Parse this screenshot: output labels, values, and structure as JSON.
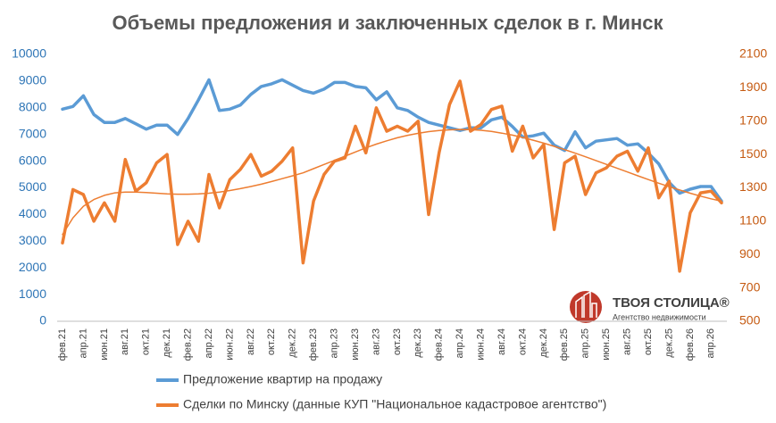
{
  "chart_data": {
    "type": "line",
    "title": "Объемы предложения и заключенных сделок в г. Минск",
    "categories": [
      "фев.21",
      null,
      "апр.21",
      null,
      "июн.21",
      null,
      "авг.21",
      null,
      "окт.21",
      null,
      "дек.21",
      null,
      "фев.22",
      null,
      "апр.22",
      null,
      "июн.22",
      null,
      "авг.22",
      null,
      "окт.22",
      null,
      "дек.22",
      null,
      "фев.23",
      null,
      "апр.23",
      null,
      "июн.23",
      null,
      "авг.23",
      null,
      "окт.23",
      null,
      "дек.23",
      null,
      "фев.24",
      null,
      "апр.24",
      null,
      "июн.24",
      null,
      "авг.24",
      null,
      "окт.24",
      null,
      "дек.24",
      null,
      "фев.25",
      null,
      "апр.25",
      null,
      "июн.25",
      null,
      "авг.25",
      null,
      "окт.25",
      null,
      "дек.25",
      null,
      "фев.26",
      null,
      "апр.26",
      null
    ],
    "series": [
      {
        "name": "Предложение квартир на продажу",
        "color": "#5b9bd5",
        "axis": "y",
        "values": [
          7950,
          8050,
          8450,
          7750,
          7450,
          7450,
          7600,
          7400,
          7200,
          7350,
          7350,
          7000,
          7600,
          8300,
          9050,
          7900,
          7950,
          8100,
          8500,
          8800,
          8900,
          9050,
          8850,
          8650,
          8550,
          8700,
          8950,
          8950,
          8800,
          8750,
          8300,
          8600,
          8000,
          7900,
          7650,
          7450,
          7350,
          7250,
          7150,
          7250,
          7250,
          7550,
          7650,
          7300,
          6900,
          6950,
          7050,
          6600,
          6400,
          7100,
          6500,
          6750,
          6800,
          6850,
          6600,
          6650,
          6300,
          5900,
          5200,
          4800,
          4950,
          5050,
          5050,
          4500
        ]
      },
      {
        "name": "Сделки по Минску (данные КУП \"Национальное кадастровое агентство\")",
        "color": "#ed7d31",
        "axis": "y2",
        "values": [
          970,
          1290,
          1260,
          1100,
          1210,
          1100,
          1470,
          1280,
          1330,
          1450,
          1500,
          960,
          1100,
          980,
          1380,
          1180,
          1350,
          1410,
          1500,
          1370,
          1400,
          1460,
          1540,
          850,
          1220,
          1380,
          1460,
          1480,
          1670,
          1510,
          1780,
          1640,
          1670,
          1640,
          1700,
          1140,
          1510,
          1800,
          1940,
          1640,
          1680,
          1770,
          1790,
          1520,
          1670,
          1480,
          1560,
          1050,
          1450,
          1490,
          1260,
          1390,
          1420,
          1490,
          1520,
          1400,
          1540,
          1240,
          1340,
          800,
          1150,
          1270,
          1280,
          1210
        ]
      }
    ],
    "trendline": {
      "color": "#ed7d31",
      "axis": "y2",
      "values": [
        1020,
        1120,
        1190,
        1230,
        1255,
        1270,
        1275,
        1275,
        1272,
        1268,
        1264,
        1262,
        1262,
        1264,
        1268,
        1275,
        1284,
        1295,
        1308,
        1322,
        1338,
        1355,
        1372,
        1390,
        1415,
        1440,
        1465,
        1490,
        1515,
        1540,
        1562,
        1582,
        1600,
        1615,
        1627,
        1637,
        1644,
        1648,
        1650,
        1649,
        1645,
        1638,
        1628,
        1616,
        1602,
        1586,
        1568,
        1549,
        1529,
        1508,
        1486,
        1464,
        1441,
        1418,
        1395,
        1372,
        1350,
        1328,
        1307,
        1287,
        1268,
        1250,
        1234,
        1220
      ]
    },
    "ylim": [
      0,
      10000
    ],
    "yticks": [
      0,
      1000,
      2000,
      3000,
      4000,
      5000,
      6000,
      7000,
      8000,
      9000,
      10000
    ],
    "y2lim": [
      500,
      2100
    ],
    "y2ticks": [
      500,
      700,
      900,
      1100,
      1300,
      1500,
      1700,
      1900,
      2100
    ],
    "grid": false,
    "logo": {
      "title": "ТВОЯ СТОЛИЦА®",
      "subtitle": "Агентство недвижимости"
    }
  }
}
